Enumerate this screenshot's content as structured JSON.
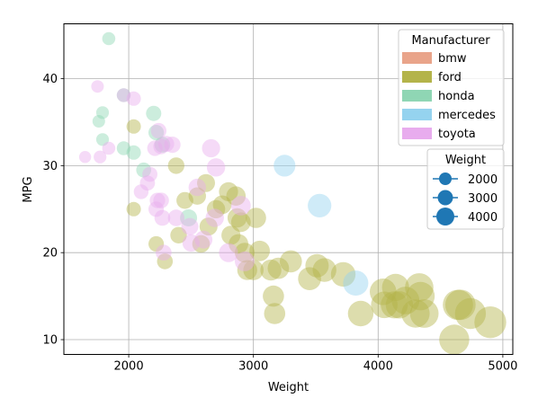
{
  "chart_data": {
    "type": "scatter",
    "xlabel": "Weight",
    "ylabel": "MPG",
    "xlim": [
      1480,
      5080
    ],
    "ylim": [
      8.3,
      46.3
    ],
    "xticks": [
      2000,
      3000,
      4000,
      5000
    ],
    "yticks": [
      10,
      20,
      30,
      40
    ],
    "grid": true,
    "alpha": 0.45,
    "size_encoding": "Weight",
    "hue_legend": {
      "title": "Manufacturer",
      "placement": "top-right",
      "entries": [
        {
          "name": "bmw",
          "color": "#e9a48a"
        },
        {
          "name": "ford",
          "color": "#b4b44a"
        },
        {
          "name": "honda",
          "color": "#8fd6b4"
        },
        {
          "name": "mercedes",
          "color": "#95d3ef"
        },
        {
          "name": "toyota",
          "color": "#e8acee"
        }
      ]
    },
    "size_legend": {
      "title": "Weight",
      "placement": "right",
      "color": "#1f77b4",
      "entries": [
        {
          "label": "2000",
          "value": 2000
        },
        {
          "label": "3000",
          "value": 3000
        },
        {
          "label": "4000",
          "value": 4000
        }
      ]
    },
    "series": [
      {
        "name": "bmw",
        "points": []
      },
      {
        "name": "ford",
        "points": [
          [
            2040,
            34.5
          ],
          [
            2040,
            25
          ],
          [
            2220,
            21
          ],
          [
            2290,
            19
          ],
          [
            2380,
            30
          ],
          [
            2400,
            22
          ],
          [
            2450,
            26
          ],
          [
            2550,
            26.5
          ],
          [
            2580,
            21
          ],
          [
            2620,
            28
          ],
          [
            2640,
            23
          ],
          [
            2700,
            25
          ],
          [
            2750,
            25.5
          ],
          [
            2800,
            27
          ],
          [
            2820,
            22
          ],
          [
            2860,
            26.5
          ],
          [
            2870,
            24
          ],
          [
            2880,
            21
          ],
          [
            2900,
            23.5
          ],
          [
            2930,
            20
          ],
          [
            2950,
            18
          ],
          [
            3000,
            18
          ],
          [
            3020,
            24
          ],
          [
            3050,
            20.2
          ],
          [
            3140,
            18
          ],
          [
            3160,
            15
          ],
          [
            3170,
            13
          ],
          [
            3200,
            18.2
          ],
          [
            3300,
            19
          ],
          [
            3450,
            17
          ],
          [
            3510,
            18.5
          ],
          [
            3570,
            18
          ],
          [
            3720,
            17.5
          ],
          [
            3860,
            13
          ],
          [
            4040,
            15.5
          ],
          [
            4050,
            14
          ],
          [
            4130,
            14
          ],
          [
            4140,
            16
          ],
          [
            4170,
            14
          ],
          [
            4220,
            14.5
          ],
          [
            4300,
            13
          ],
          [
            4330,
            16
          ],
          [
            4340,
            15
          ],
          [
            4370,
            13
          ],
          [
            4610,
            10
          ],
          [
            4640,
            14
          ],
          [
            4660,
            14
          ],
          [
            4740,
            13
          ],
          [
            4900,
            12
          ]
        ]
      },
      {
        "name": "honda",
        "points": [
          [
            1760,
            35.1
          ],
          [
            1790,
            36.1
          ],
          [
            1790,
            33
          ],
          [
            1840,
            44.6
          ],
          [
            1960,
            32
          ],
          [
            1960,
            38.1
          ],
          [
            2040,
            31.5
          ],
          [
            2120,
            29.5
          ],
          [
            2200,
            36
          ],
          [
            2220,
            33.8
          ],
          [
            2270,
            32.4
          ],
          [
            2480,
            24
          ]
        ]
      },
      {
        "name": "mercedes",
        "points": [
          [
            3250,
            30
          ],
          [
            3530,
            25.4
          ],
          [
            3820,
            16.5
          ]
        ]
      },
      {
        "name": "toyota",
        "points": [
          [
            1650,
            31
          ],
          [
            1750,
            39.1
          ],
          [
            1770,
            31
          ],
          [
            1840,
            32
          ],
          [
            1960,
            38.1
          ],
          [
            2040,
            37.7
          ],
          [
            2100,
            27
          ],
          [
            2150,
            28
          ],
          [
            2170,
            29
          ],
          [
            2210,
            32
          ],
          [
            2220,
            25
          ],
          [
            2230,
            26
          ],
          [
            2240,
            34
          ],
          [
            2260,
            32.2
          ],
          [
            2260,
            26
          ],
          [
            2270,
            24
          ],
          [
            2280,
            20
          ],
          [
            2300,
            32.5
          ],
          [
            2350,
            32.4
          ],
          [
            2380,
            24
          ],
          [
            2490,
            23
          ],
          [
            2500,
            21.1
          ],
          [
            2550,
            27.5
          ],
          [
            2600,
            21.5
          ],
          [
            2660,
            32
          ],
          [
            2690,
            24
          ],
          [
            2700,
            29.8
          ],
          [
            2800,
            20
          ],
          [
            2900,
            25.4
          ],
          [
            2930,
            19
          ]
        ]
      }
    ]
  }
}
